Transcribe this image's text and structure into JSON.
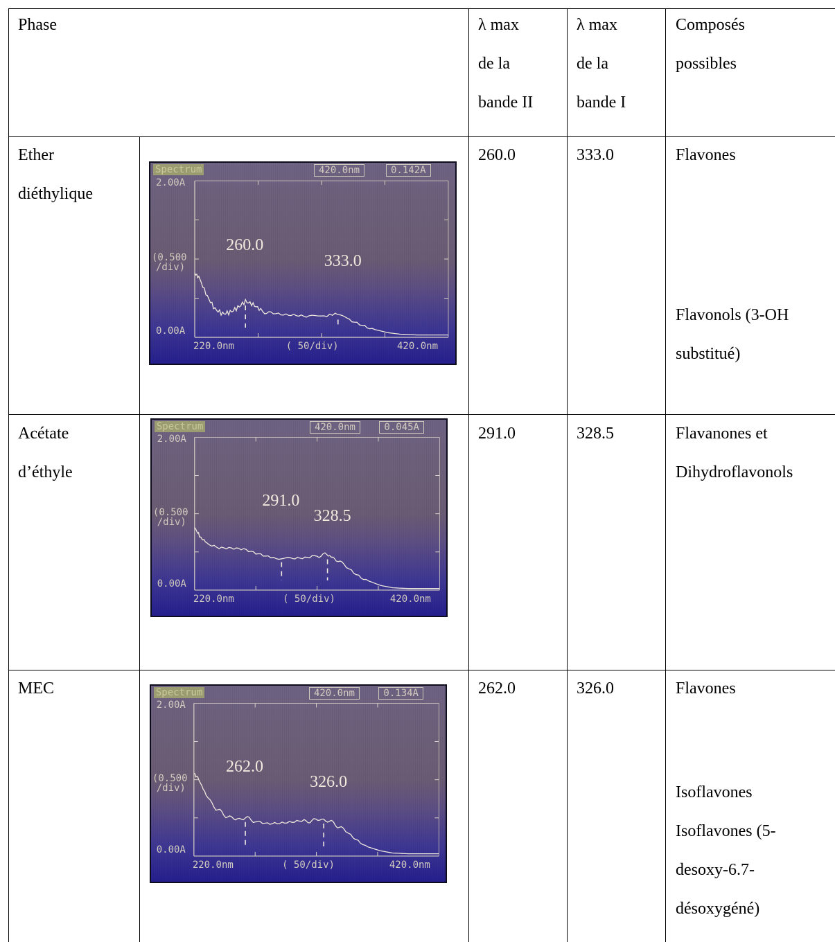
{
  "header": {
    "phase": "Phase",
    "band2": [
      "λ max",
      "de la",
      "bande II"
    ],
    "band1": [
      "λ max",
      "de la",
      "bande I"
    ],
    "compounds": [
      "Composés",
      "possibles"
    ]
  },
  "spectrum_labels": {
    "title": "Spectrum",
    "y_top": "2.00A",
    "y_div_1": "(0.500",
    "y_div_2": "/div)",
    "y_zero": "0.00A",
    "x_start": "220.0nm",
    "x_div": "(  50/div)",
    "x_end": "420.0nm",
    "cursor_wavelength": "420.0nm"
  },
  "rows": [
    {
      "phase": [
        "Ether",
        "diéthylique"
      ],
      "band2": "260.0",
      "band1": "333.0",
      "compounds_top": [
        "Flavones"
      ],
      "compounds_bottom": [
        "Flavonols (3-OH",
        "substitué)"
      ],
      "spectrum": {
        "absorbance_readout": "0.142A",
        "peak_label_1": "260.0",
        "peak_label_2": "333.0",
        "peaks_nm": [
          260.0,
          333.0
        ],
        "trace_absorbance": [
          [
            220,
            0.82
          ],
          [
            224,
            0.74
          ],
          [
            230,
            0.52
          ],
          [
            236,
            0.36
          ],
          [
            242,
            0.3
          ],
          [
            248,
            0.32
          ],
          [
            254,
            0.38
          ],
          [
            260,
            0.46
          ],
          [
            266,
            0.42
          ],
          [
            272,
            0.35
          ],
          [
            280,
            0.3
          ],
          [
            290,
            0.28
          ],
          [
            300,
            0.28
          ],
          [
            310,
            0.27
          ],
          [
            322,
            0.28
          ],
          [
            333,
            0.28
          ],
          [
            342,
            0.24
          ],
          [
            352,
            0.17
          ],
          [
            362,
            0.1
          ],
          [
            372,
            0.06
          ],
          [
            382,
            0.04
          ],
          [
            395,
            0.03
          ],
          [
            410,
            0.03
          ],
          [
            420,
            0.03
          ]
        ]
      }
    },
    {
      "phase": [
        "Acétate",
        "d’éthyle"
      ],
      "band2": "291.0",
      "band1": "328.5",
      "compounds_top": [
        "Flavanones et",
        "Dihydroflavonols"
      ],
      "compounds_bottom": [],
      "spectrum": {
        "absorbance_readout": "0.045A",
        "peak_label_1": "291.0",
        "peak_label_2": "328.5",
        "peaks_nm": [
          291.0,
          328.5
        ],
        "trace_absorbance": [
          [
            220,
            0.82
          ],
          [
            224,
            0.7
          ],
          [
            230,
            0.62
          ],
          [
            240,
            0.56
          ],
          [
            250,
            0.55
          ],
          [
            260,
            0.53
          ],
          [
            270,
            0.47
          ],
          [
            280,
            0.42
          ],
          [
            291,
            0.42
          ],
          [
            300,
            0.4
          ],
          [
            310,
            0.41
          ],
          [
            320,
            0.45
          ],
          [
            328,
            0.46
          ],
          [
            334,
            0.42
          ],
          [
            342,
            0.34
          ],
          [
            352,
            0.22
          ],
          [
            362,
            0.12
          ],
          [
            372,
            0.06
          ],
          [
            382,
            0.03
          ],
          [
            395,
            0.02
          ],
          [
            410,
            0.02
          ],
          [
            420,
            0.02
          ]
        ]
      }
    },
    {
      "phase": [
        "MEC"
      ],
      "band2": "262.0",
      "band1": "326.0",
      "compounds_top": [
        "Flavones"
      ],
      "compounds_bottom": [
        "Isoflavones",
        "Isoflavones (5-",
        "desoxy-6.7-",
        "désoxygéné)"
      ],
      "spectrum": {
        "absorbance_readout": "0.134A",
        "peak_label_1": "262.0",
        "peak_label_2": "326.0",
        "peaks_nm": [
          262.0,
          326.0
        ],
        "trace_absorbance": [
          [
            220,
            1.08
          ],
          [
            224,
            1.0
          ],
          [
            230,
            0.8
          ],
          [
            238,
            0.62
          ],
          [
            246,
            0.53
          ],
          [
            254,
            0.48
          ],
          [
            262,
            0.5
          ],
          [
            270,
            0.46
          ],
          [
            280,
            0.42
          ],
          [
            290,
            0.42
          ],
          [
            300,
            0.43
          ],
          [
            310,
            0.45
          ],
          [
            318,
            0.47
          ],
          [
            326,
            0.48
          ],
          [
            334,
            0.43
          ],
          [
            342,
            0.35
          ],
          [
            352,
            0.22
          ],
          [
            362,
            0.12
          ],
          [
            372,
            0.07
          ],
          [
            382,
            0.04
          ],
          [
            395,
            0.03
          ],
          [
            410,
            0.03
          ],
          [
            420,
            0.03
          ]
        ]
      }
    }
  ]
}
